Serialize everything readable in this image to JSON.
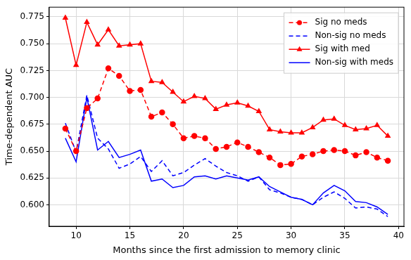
{
  "chart_data": {
    "type": "line",
    "x_label": "Months since the first admission to memory clinic",
    "y_label": "Time-dependent AUC",
    "x": [
      9,
      10,
      11,
      12,
      13,
      14,
      15,
      16,
      17,
      18,
      19,
      20,
      21,
      22,
      23,
      24,
      25,
      26,
      27,
      28,
      29,
      30,
      31,
      32,
      33,
      34,
      35,
      36,
      37,
      38,
      39
    ],
    "series": [
      {
        "name": "Sig no meds",
        "color": "#ff0000",
        "marker": "circle",
        "line_style": "dashed",
        "values": [
          0.671,
          0.65,
          0.69,
          0.699,
          0.727,
          0.72,
          0.706,
          0.707,
          0.682,
          0.686,
          0.675,
          0.662,
          0.664,
          0.662,
          0.652,
          0.654,
          0.658,
          0.654,
          0.649,
          0.644,
          0.637,
          0.638,
          0.645,
          0.647,
          0.65,
          0.651,
          0.65,
          0.646,
          0.649,
          0.644,
          0.641
        ]
      },
      {
        "name": "Non-sig no meds",
        "color": "#0000ff",
        "marker": "none",
        "line_style": "dashed",
        "values": [
          0.676,
          0.649,
          0.702,
          0.662,
          0.652,
          0.634,
          0.638,
          0.645,
          0.631,
          0.641,
          0.627,
          0.63,
          0.637,
          0.643,
          0.636,
          0.63,
          0.627,
          0.622,
          0.626,
          0.614,
          0.611,
          0.607,
          0.605,
          0.6,
          0.607,
          0.612,
          0.606,
          0.597,
          0.598,
          0.596,
          0.589
        ]
      },
      {
        "name": "Sig with med",
        "color": "#ff0000",
        "marker": "triangle",
        "line_style": "solid",
        "values": [
          0.774,
          0.73,
          0.77,
          0.749,
          0.763,
          0.748,
          0.749,
          0.75,
          0.715,
          0.714,
          0.705,
          0.696,
          0.701,
          0.699,
          0.689,
          0.693,
          0.695,
          0.692,
          0.687,
          0.67,
          0.668,
          0.667,
          0.667,
          0.672,
          0.679,
          0.68,
          0.674,
          0.67,
          0.671,
          0.674,
          0.664
        ]
      },
      {
        "name": "Non-sig with meds",
        "color": "#0000ff",
        "marker": "none",
        "line_style": "solid",
        "values": [
          0.662,
          0.64,
          0.7,
          0.651,
          0.659,
          0.644,
          0.647,
          0.651,
          0.622,
          0.624,
          0.616,
          0.618,
          0.626,
          0.627,
          0.624,
          0.627,
          0.625,
          0.623,
          0.626,
          0.617,
          0.612,
          0.607,
          0.605,
          0.6,
          0.611,
          0.618,
          0.613,
          0.603,
          0.602,
          0.598,
          0.591
        ]
      }
    ],
    "xlim": [
      7.5,
      40.5
    ],
    "xticks": [
      10,
      15,
      20,
      25,
      30,
      35,
      40
    ],
    "ylim": [
      0.58,
      0.784
    ],
    "yticks": [
      {
        "value": 0.6,
        "label": "0.600"
      },
      0.625,
      {
        "value": 0.65,
        "label": "0.650"
      },
      0.675,
      {
        "value": 0.7,
        "label": "0.700"
      },
      0.725,
      {
        "value": 0.75,
        "label": "0.750"
      },
      0.775
    ],
    "grid": true,
    "legend": "upper right"
  }
}
